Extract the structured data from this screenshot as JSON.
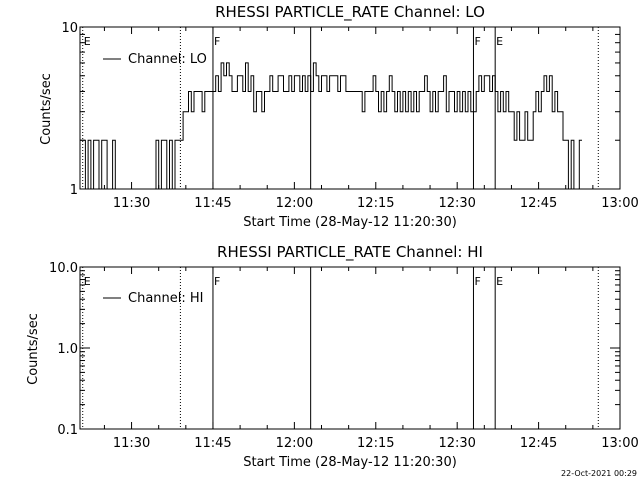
{
  "footer_timestamp": "22-Oct-2021 00:29",
  "chart_data": [
    {
      "type": "line",
      "title": "RHESSI PARTICLE_RATE Channel: LO",
      "xlabel": "Start Time (28-May-12 11:20:30)",
      "ylabel": "Counts/sec",
      "yscale": "log",
      "xlim": [
        "11:20:30",
        "13:00:00"
      ],
      "ylim": [
        1,
        10
      ],
      "x_tick_labels": [
        "11:30",
        "11:45",
        "12:00",
        "12:15",
        "12:30",
        "12:45",
        "13:00"
      ],
      "y_tick_labels": [
        "1",
        "10"
      ],
      "legend": {
        "entries": [
          "Channel: LO"
        ],
        "placement": "top-left"
      },
      "grid": false,
      "markers": [
        {
          "time": "11:21",
          "style": "dotted",
          "label": "E"
        },
        {
          "time": "11:39",
          "style": "dotted",
          "label": ""
        },
        {
          "time": "11:45",
          "style": "solid",
          "label": "F"
        },
        {
          "time": "12:03",
          "style": "solid",
          "label": ""
        },
        {
          "time": "12:33",
          "style": "solid",
          "label": "F"
        },
        {
          "time": "12:37",
          "style": "solid",
          "label": "E"
        },
        {
          "time": "12:56",
          "style": "dotted",
          "label": ""
        }
      ],
      "series": [
        {
          "name": "Channel: LO",
          "points": [
            [
              "11:20:30",
              2
            ],
            [
              "11:21",
              2
            ],
            [
              "11:21:30",
              1
            ],
            [
              "11:22",
              2
            ],
            [
              "11:22:30",
              1
            ],
            [
              "11:23",
              2
            ],
            [
              "11:23:30",
              2
            ],
            [
              "11:24",
              1
            ],
            [
              "11:24:30",
              2
            ],
            [
              "11:25",
              2
            ],
            [
              "11:25:30",
              1
            ],
            [
              "11:26",
              1
            ],
            [
              "11:26:30",
              2
            ],
            [
              "11:27",
              1
            ],
            [
              "11:28",
              1
            ],
            [
              "11:29",
              1
            ],
            [
              "11:30",
              1
            ],
            [
              "11:31",
              1
            ],
            [
              "11:32",
              1
            ],
            [
              "11:33",
              1
            ],
            [
              "11:34",
              1
            ],
            [
              "11:34:30",
              2
            ],
            [
              "11:35",
              1
            ],
            [
              "11:35:30",
              2
            ],
            [
              "11:36",
              2
            ],
            [
              "11:36:30",
              1
            ],
            [
              "11:37",
              2
            ],
            [
              "11:37:30",
              1
            ],
            [
              "11:38",
              2
            ],
            [
              "11:38:30",
              2
            ],
            [
              "11:39",
              2
            ],
            [
              "11:39:30",
              3
            ],
            [
              "11:40",
              3
            ],
            [
              "11:40:30",
              4
            ],
            [
              "11:41",
              3
            ],
            [
              "11:41:30",
              4
            ],
            [
              "11:42",
              4
            ],
            [
              "11:42:30",
              4
            ],
            [
              "11:43",
              3
            ],
            [
              "11:43:30",
              4
            ],
            [
              "11:44",
              4
            ],
            [
              "11:44:30",
              4
            ],
            [
              "11:45",
              4
            ],
            [
              "11:45:30",
              5
            ],
            [
              "11:46",
              4
            ],
            [
              "11:46:30",
              6
            ],
            [
              "11:47",
              5
            ],
            [
              "11:47:30",
              6
            ],
            [
              "11:48",
              5
            ],
            [
              "11:48:30",
              4
            ],
            [
              "11:49",
              4
            ],
            [
              "11:49:30",
              5
            ],
            [
              "11:50",
              5
            ],
            [
              "11:50:30",
              4
            ],
            [
              "11:51",
              6
            ],
            [
              "11:51:30",
              4
            ],
            [
              "11:52",
              5
            ],
            [
              "11:52:30",
              3
            ],
            [
              "11:53",
              4
            ],
            [
              "11:53:30",
              4
            ],
            [
              "11:54",
              3
            ],
            [
              "11:54:30",
              4
            ],
            [
              "11:55",
              4
            ],
            [
              "11:55:30",
              5
            ],
            [
              "11:56",
              4
            ],
            [
              "11:56:30",
              4
            ],
            [
              "11:57",
              5
            ],
            [
              "11:57:30",
              5
            ],
            [
              "11:58",
              4
            ],
            [
              "11:58:30",
              4
            ],
            [
              "11:59",
              5
            ],
            [
              "11:59:30",
              4
            ],
            [
              "12:00",
              5
            ],
            [
              "12:00:30",
              5
            ],
            [
              "12:01",
              4
            ],
            [
              "12:01:30",
              5
            ],
            [
              "12:02",
              4
            ],
            [
              "12:02:30",
              5
            ],
            [
              "12:03",
              4
            ],
            [
              "12:03:30",
              6
            ],
            [
              "12:04",
              5
            ],
            [
              "12:04:30",
              4
            ],
            [
              "12:05",
              5
            ],
            [
              "12:05:30",
              5
            ],
            [
              "12:06",
              4
            ],
            [
              "12:06:30",
              5
            ],
            [
              "12:07",
              5
            ],
            [
              "12:07:30",
              5
            ],
            [
              "12:08",
              4
            ],
            [
              "12:08:30",
              5
            ],
            [
              "12:09",
              5
            ],
            [
              "12:09:30",
              4
            ],
            [
              "12:10",
              4
            ],
            [
              "12:11",
              4
            ],
            [
              "12:12",
              4
            ],
            [
              "12:12:30",
              3
            ],
            [
              "12:13",
              4
            ],
            [
              "12:13:30",
              4
            ],
            [
              "12:14",
              4
            ],
            [
              "12:14:30",
              5
            ],
            [
              "12:15",
              4
            ],
            [
              "12:15:30",
              3
            ],
            [
              "12:16",
              4
            ],
            [
              "12:16:30",
              3
            ],
            [
              "12:17",
              4
            ],
            [
              "12:17:30",
              5
            ],
            [
              "12:18",
              4
            ],
            [
              "12:18:30",
              3
            ],
            [
              "12:19",
              4
            ],
            [
              "12:19:30",
              3
            ],
            [
              "12:20",
              4
            ],
            [
              "12:20:30",
              3
            ],
            [
              "12:21",
              4
            ],
            [
              "12:21:30",
              3
            ],
            [
              "12:22",
              4
            ],
            [
              "12:22:30",
              3
            ],
            [
              "12:23",
              4
            ],
            [
              "12:23:30",
              4
            ],
            [
              "12:24",
              5
            ],
            [
              "12:24:30",
              4
            ],
            [
              "12:25",
              3
            ],
            [
              "12:25:30",
              4
            ],
            [
              "12:26",
              3
            ],
            [
              "12:26:30",
              4
            ],
            [
              "12:27",
              4
            ],
            [
              "12:27:30",
              5
            ],
            [
              "12:28",
              3
            ],
            [
              "12:28:30",
              4
            ],
            [
              "12:29",
              4
            ],
            [
              "12:29:30",
              3
            ],
            [
              "12:30",
              4
            ],
            [
              "12:30:30",
              3
            ],
            [
              "12:31",
              4
            ],
            [
              "12:31:30",
              3
            ],
            [
              "12:32",
              4
            ],
            [
              "12:32:30",
              3
            ],
            [
              "12:33",
              3
            ],
            [
              "12:33:30",
              4
            ],
            [
              "12:34",
              5
            ],
            [
              "12:34:30",
              4
            ],
            [
              "12:35",
              5
            ],
            [
              "12:35:30",
              5
            ],
            [
              "12:36",
              4
            ],
            [
              "12:36:30",
              5
            ],
            [
              "12:37",
              4
            ],
            [
              "12:37:30",
              3
            ],
            [
              "12:38",
              4
            ],
            [
              "12:38:30",
              3
            ],
            [
              "12:39",
              4
            ],
            [
              "12:39:30",
              3
            ],
            [
              "12:40",
              3
            ],
            [
              "12:40:30",
              2
            ],
            [
              "12:41",
              3
            ],
            [
              "12:41:30",
              2
            ],
            [
              "12:42",
              2
            ],
            [
              "12:42:30",
              3
            ],
            [
              "12:43",
              2
            ],
            [
              "12:43:30",
              2
            ],
            [
              "12:44",
              3
            ],
            [
              "12:44:30",
              4
            ],
            [
              "12:45",
              3
            ],
            [
              "12:45:30",
              4
            ],
            [
              "12:46",
              5
            ],
            [
              "12:46:30",
              4
            ],
            [
              "12:47",
              5
            ],
            [
              "12:47:30",
              3
            ],
            [
              "12:48",
              4
            ],
            [
              "12:48:30",
              3
            ],
            [
              "12:49",
              3
            ],
            [
              "12:49:30",
              2
            ],
            [
              "12:50",
              2
            ],
            [
              "12:50:30",
              1
            ],
            [
              "12:51",
              2
            ],
            [
              "12:51:30",
              1
            ],
            [
              "12:52",
              1
            ],
            [
              "12:52:30",
              2
            ],
            [
              "12:53",
              2
            ]
          ]
        }
      ]
    },
    {
      "type": "line",
      "title": "RHESSI PARTICLE_RATE Channel: HI",
      "xlabel": "Start Time (28-May-12 11:20:30)",
      "ylabel": "Counts/sec",
      "yscale": "log",
      "xlim": [
        "11:20:30",
        "13:00:00"
      ],
      "ylim": [
        0.1,
        10
      ],
      "x_tick_labels": [
        "11:30",
        "11:45",
        "12:00",
        "12:15",
        "12:30",
        "12:45",
        "13:00"
      ],
      "y_tick_labels": [
        "0.1",
        "1.0",
        "10.0"
      ],
      "legend": {
        "entries": [
          "Channel: HI"
        ],
        "placement": "top-left"
      },
      "grid": false,
      "markers": [
        {
          "time": "11:21",
          "style": "dotted",
          "label": "E"
        },
        {
          "time": "11:39",
          "style": "dotted",
          "label": ""
        },
        {
          "time": "11:45",
          "style": "solid",
          "label": "F"
        },
        {
          "time": "12:03",
          "style": "solid",
          "label": ""
        },
        {
          "time": "12:33",
          "style": "solid",
          "label": "F"
        },
        {
          "time": "12:37",
          "style": "solid",
          "label": "E"
        },
        {
          "time": "12:56",
          "style": "dotted",
          "label": ""
        }
      ],
      "series": [
        {
          "name": "Channel: HI",
          "points": []
        }
      ]
    }
  ]
}
